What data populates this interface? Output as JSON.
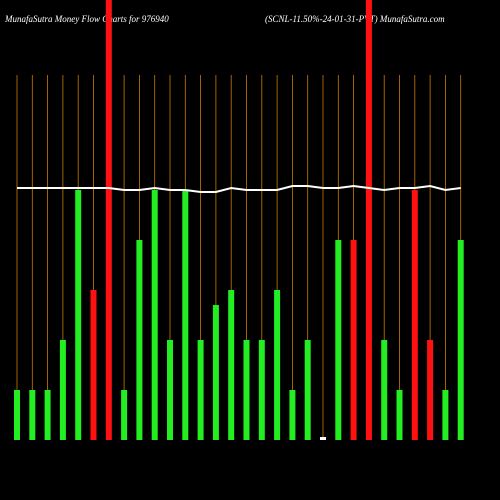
{
  "chart_data": {
    "type": "bar",
    "title": "MunafaSutra  Money Flow Charts for 976940",
    "subtitle": "(SCNL-11.50%-24-01-31-PVT) MunafaSutra.com",
    "categories": [
      null,
      null,
      null,
      null,
      null,
      null,
      null,
      null,
      null,
      null,
      null,
      null,
      null,
      null,
      null,
      null,
      null,
      null,
      null,
      null,
      null,
      null,
      null,
      null,
      null,
      null,
      null,
      null,
      null,
      null
    ],
    "series": [
      {
        "colors": [
          "#22ee22",
          "#22ee22",
          "#22ee22",
          "#22ee22",
          "#22ee22",
          "#ff1111",
          "#ff1111",
          "#22ee22",
          "#22ee22",
          "#22ee22",
          "#22ee22",
          "#22ee22",
          "#22ee22",
          "#22ee22",
          "#22ee22",
          "#22ee22",
          "#22ee22",
          "#22ee22",
          "#22ee22",
          "#22ee22",
          "#ffffff",
          "#22ee22",
          "#ff1111",
          "#ff1111",
          "#22ee22",
          "#22ee22",
          "#ff1111",
          "#ff1111",
          "#22ee22",
          "#22ee22"
        ],
        "values": [
          1,
          1,
          1,
          2,
          5,
          3,
          9,
          1,
          4,
          5,
          2,
          5,
          2,
          2.7,
          3,
          2,
          2,
          3,
          1,
          2,
          0.06,
          4,
          4,
          9,
          2,
          1,
          5,
          2,
          1,
          4
        ]
      },
      {
        "type": "line",
        "color": "#ffffff",
        "values": [
          5.04,
          5.04,
          5.04,
          5.04,
          5.04,
          5.04,
          5.04,
          5,
          5,
          5.04,
          5,
          5,
          4.96,
          4.96,
          5.04,
          5,
          5,
          5,
          5.08,
          5.08,
          5.04,
          5.04,
          5.08,
          5.04,
          5,
          5.04,
          5.04,
          5.08,
          5,
          5.04
        ]
      }
    ],
    "grid_color": "#cc7a00",
    "ylim": [
      0,
      8.8
    ]
  }
}
